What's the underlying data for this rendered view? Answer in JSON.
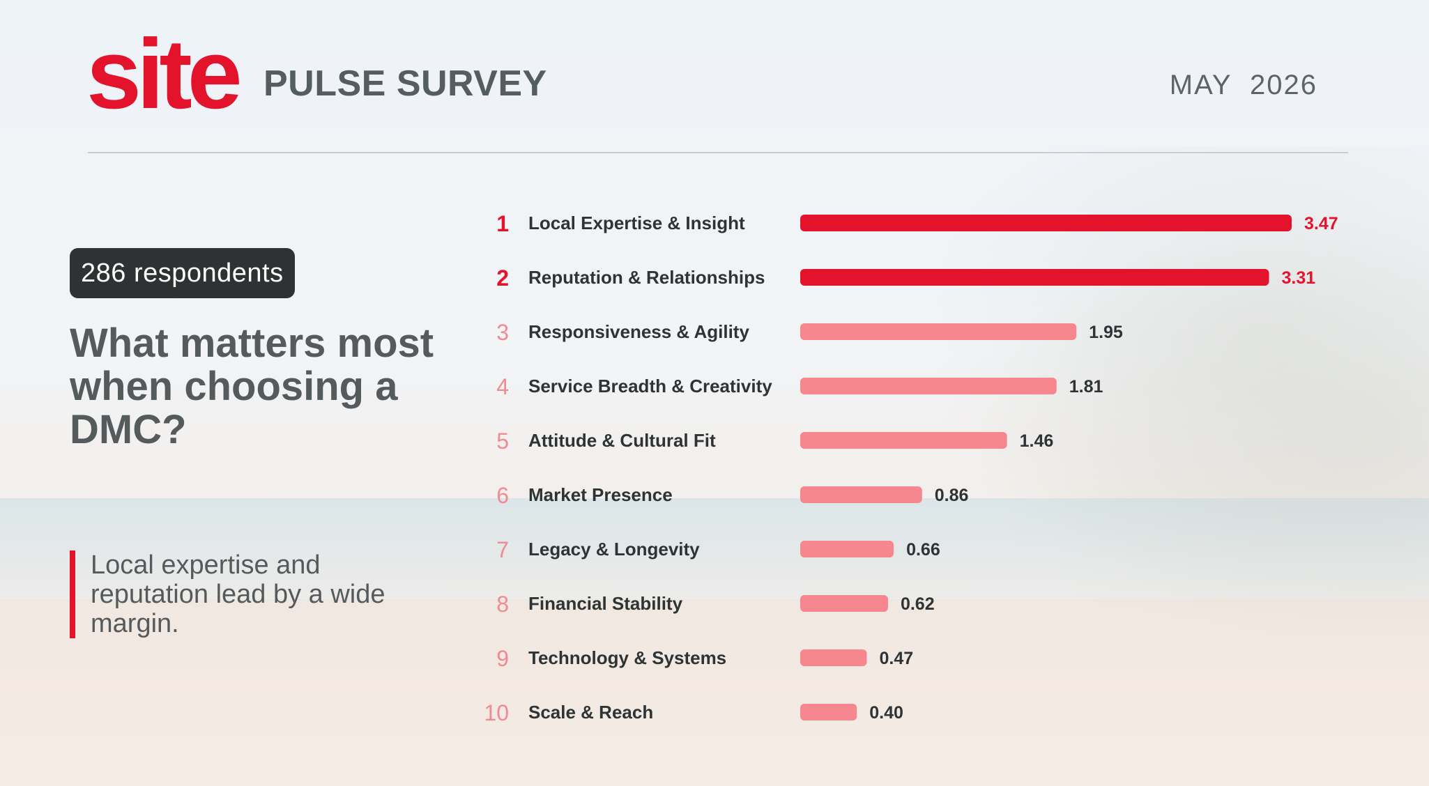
{
  "header": {
    "logo_text": "site",
    "survey_title": "PULSE SURVEY",
    "date": "MAY  2026"
  },
  "sidebar": {
    "respondents": "286 respondents",
    "question": "What matters most when choosing a DMC?",
    "note": "Local expertise and reputation lead by a wide margin."
  },
  "colors": {
    "accent": "#e4132c",
    "highlight_bar": "#e4132c",
    "normal_bar": "#f7878f",
    "highlight_rank": "#e4132c",
    "normal_rank": "#f08a93"
  },
  "chart_data": {
    "type": "bar",
    "orientation": "horizontal",
    "categories": [
      "Local Expertise & Insight",
      "Reputation & Relationships",
      "Responsiveness & Agility",
      "Service Breadth & Creativity",
      "Attitude & Cultural Fit",
      "Market Presence",
      "Legacy & Longevity",
      "Financial Stability",
      "Technology & Systems",
      "Scale & Reach"
    ],
    "ranks": [
      "1",
      "2",
      "3",
      "4",
      "5",
      "6",
      "7",
      "8",
      "9",
      "10"
    ],
    "values": [
      3.47,
      3.31,
      1.95,
      1.81,
      1.46,
      0.86,
      0.66,
      0.62,
      0.47,
      0.4
    ],
    "value_labels": [
      "3.47",
      "3.31",
      "1.95",
      "1.81",
      "1.46",
      "0.86",
      "0.66",
      "0.62",
      "0.47",
      "0.40"
    ],
    "highlight_top": 2,
    "xlim": [
      0,
      3.47
    ],
    "grid": false
  }
}
